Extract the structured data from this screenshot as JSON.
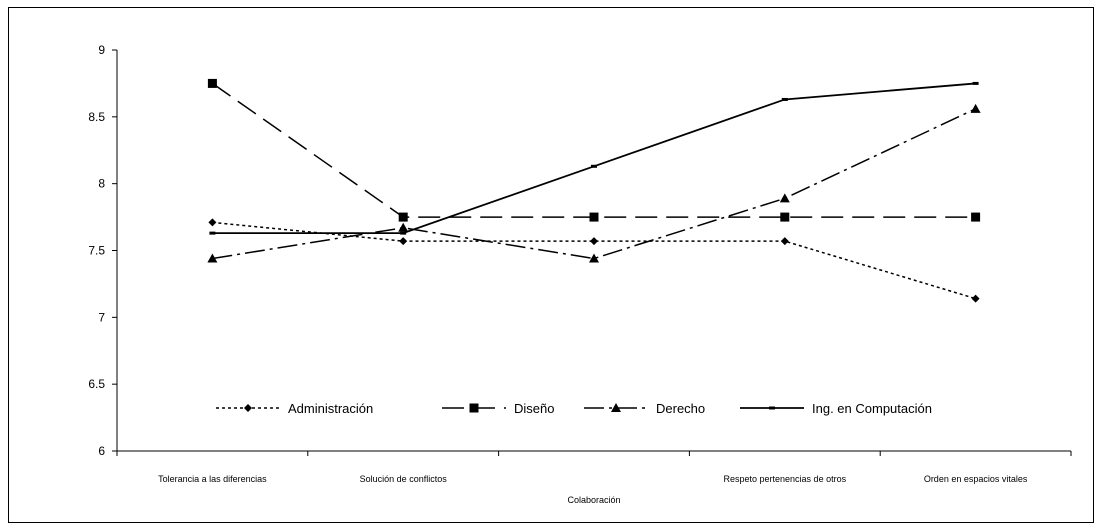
{
  "chart_data": {
    "type": "line",
    "categories": [
      "Tolerancia a las diferencias",
      "Solución de conflictos",
      "Colaboración",
      "Respeto pertenencias de otros",
      "Orden en espacios vitales"
    ],
    "series": [
      {
        "name": "Administración",
        "values": [
          7.71,
          7.57,
          7.57,
          7.57,
          7.14
        ],
        "dash": "3,3",
        "marker": "diamond"
      },
      {
        "name": "Diseño",
        "values": [
          8.75,
          7.75,
          7.75,
          7.75,
          7.75
        ],
        "dash": "22,9",
        "marker": "square"
      },
      {
        "name": "Derecho",
        "values": [
          7.44,
          7.67,
          7.44,
          7.89,
          8.56
        ],
        "dash": "20,5,3,5",
        "marker": "triangle"
      },
      {
        "name": "Ing. en Computación",
        "values": [
          7.63,
          7.63,
          8.13,
          8.63,
          8.75
        ],
        "dash": "",
        "marker": "dash"
      }
    ],
    "ylim": [
      6,
      9
    ],
    "yticks": [
      "6",
      "6.5",
      "7",
      "7.5",
      "8",
      "8.5",
      "9"
    ],
    "title": "",
    "xlabel": "",
    "ylabel": "",
    "legend_position": "bottom-inside",
    "grid": false,
    "line_color": "#000000"
  }
}
